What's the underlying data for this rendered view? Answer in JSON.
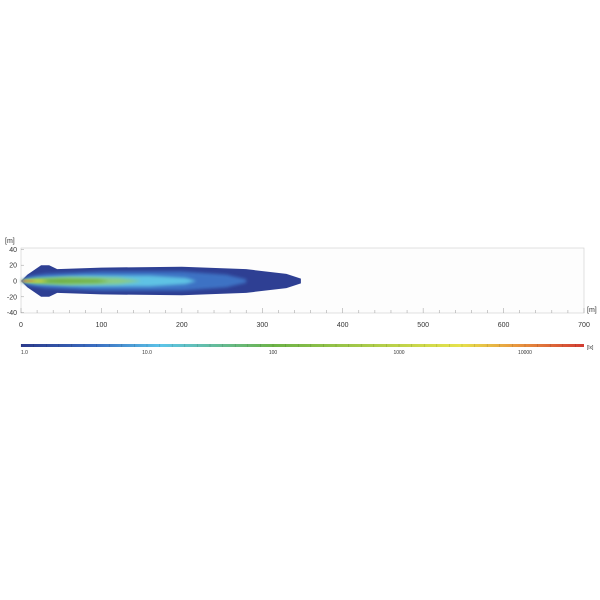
{
  "chart_data": {
    "type": "heatmap",
    "title": "",
    "xlabel": "[m]",
    "ylabel": "[m]",
    "xlim": [
      0,
      700
    ],
    "ylim": [
      -40,
      40
    ],
    "x_ticks": [
      "0",
      "100",
      "200",
      "300",
      "400",
      "500",
      "600",
      "700"
    ],
    "y_ticks": [
      "40",
      "20",
      "0",
      "-20",
      "-40"
    ],
    "grid": false,
    "colorbar": {
      "unit": "[lx]",
      "scale": "log",
      "range": [
        1,
        50000
      ],
      "tick_labels": [
        "1.0",
        "10.0",
        "100",
        "1000",
        "10000"
      ],
      "colors": [
        "#2b3a8c",
        "#3a6cc0",
        "#5cc4e8",
        "#6db347",
        "#e6e24c",
        "#e8973f",
        "#d23b32"
      ]
    },
    "isolux_contours": [
      {
        "level": 1,
        "color": "#2e3f93",
        "half_profile": [
          [
            0,
            0
          ],
          [
            8,
            8
          ],
          [
            25,
            20
          ],
          [
            35,
            20
          ],
          [
            45,
            15
          ],
          [
            100,
            17
          ],
          [
            200,
            18
          ],
          [
            280,
            15
          ],
          [
            330,
            9
          ],
          [
            348,
            3
          ]
        ]
      },
      {
        "level": 3,
        "color": "#3d72c4",
        "half_profile": [
          [
            0,
            0
          ],
          [
            10,
            6
          ],
          [
            30,
            9
          ],
          [
            100,
            12
          ],
          [
            200,
            12
          ],
          [
            255,
            8
          ],
          [
            280,
            2
          ]
        ]
      },
      {
        "level": 10,
        "color": "#5ec2e4",
        "half_profile": [
          [
            0,
            0
          ],
          [
            20,
            4
          ],
          [
            80,
            7
          ],
          [
            160,
            7
          ],
          [
            205,
            4
          ],
          [
            218,
            0
          ]
        ]
      },
      {
        "level": 30,
        "color": "#8acb86",
        "half_profile": [
          [
            0,
            0
          ],
          [
            20,
            3
          ],
          [
            60,
            5
          ],
          [
            120,
            4
          ],
          [
            150,
            0
          ]
        ]
      },
      {
        "level": 100,
        "color": "#6eb043",
        "half_profile": [
          [
            0,
            0
          ],
          [
            15,
            2
          ],
          [
            50,
            3
          ],
          [
            95,
            2
          ],
          [
            110,
            0
          ]
        ]
      },
      {
        "level": 1000,
        "color": "#e6e04a",
        "half_profile": [
          [
            0,
            0
          ],
          [
            5,
            1.5
          ],
          [
            25,
            1.5
          ],
          [
            35,
            0
          ]
        ]
      },
      {
        "level": 10000,
        "color": "#cf4430",
        "half_profile": [
          [
            0,
            0
          ],
          [
            3,
            0.8
          ],
          [
            14,
            0.6
          ],
          [
            18,
            0
          ]
        ]
      }
    ]
  }
}
